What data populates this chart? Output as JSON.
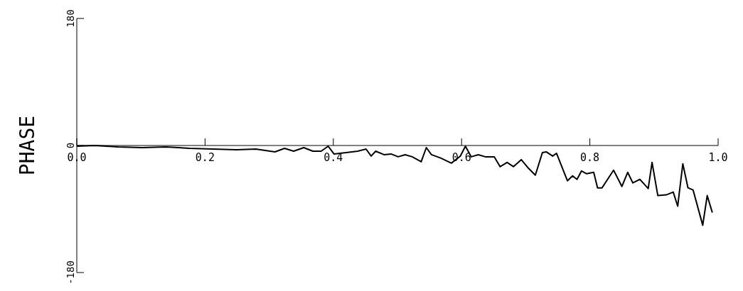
{
  "chart_data": {
    "type": "line",
    "ylabel": "PHASE",
    "xlim": [
      0,
      1
    ],
    "xticks": [
      {
        "value": 0,
        "label": "0.0"
      },
      {
        "value": 0.2,
        "label": "0.2"
      },
      {
        "value": 0.4,
        "label": "0.4"
      },
      {
        "value": 0.6,
        "label": "0.6"
      },
      {
        "value": 0.8,
        "label": "0.8"
      },
      {
        "value": 1,
        "label": "1.0"
      }
    ],
    "ylim": [
      -180,
      180
    ],
    "yticks": [
      -180,
      0,
      180
    ],
    "marker": "none",
    "line_style": "solid",
    "x": [
      0,
      0.028,
      0.065,
      0.102,
      0.139,
      0.176,
      0.213,
      0.249,
      0.279,
      0.309,
      0.324,
      0.338,
      0.354,
      0.368,
      0.381,
      0.392,
      0.401,
      0.42,
      0.438,
      0.451,
      0.459,
      0.466,
      0.479,
      0.49,
      0.501,
      0.512,
      0.523,
      0.537,
      0.545,
      0.553,
      0.568,
      0.584,
      0.598,
      0.606,
      0.615,
      0.626,
      0.637,
      0.651,
      0.66,
      0.671,
      0.681,
      0.693,
      0.704,
      0.715,
      0.726,
      0.732,
      0.742,
      0.748,
      0.765,
      0.773,
      0.78,
      0.787,
      0.795,
      0.806,
      0.812,
      0.819,
      0.837,
      0.85,
      0.859,
      0.867,
      0.878,
      0.891,
      0.897,
      0.906,
      0.919,
      0.93,
      0.937,
      0.94,
      0.945,
      0.953,
      0.961,
      0.976,
      0.983,
      0.991
    ],
    "series": [
      {
        "color": "#000000",
        "values": [
          -1,
          0,
          -2,
          -3,
          -2,
          -4,
          -5,
          -6,
          -5,
          -9,
          -4,
          -8,
          -3,
          -8,
          -8,
          -1,
          -12,
          -10,
          -8,
          -5,
          -15,
          -8,
          -13,
          -12,
          -16,
          -13,
          -16,
          -23,
          -3,
          -13,
          -18,
          -25,
          -15,
          -1,
          -16,
          -13,
          -16,
          -16,
          -30,
          -24,
          -30,
          -20,
          -32,
          -42,
          -10,
          -9,
          -15,
          -11,
          -50,
          -43,
          -48,
          -36,
          -40,
          -38,
          -60,
          -60,
          -35,
          -58,
          -38,
          -53,
          -48,
          -61,
          -24,
          -71,
          -70,
          -66,
          -86,
          -63,
          -26,
          -60,
          -63,
          -113,
          -71,
          -95
        ]
      }
    ]
  }
}
